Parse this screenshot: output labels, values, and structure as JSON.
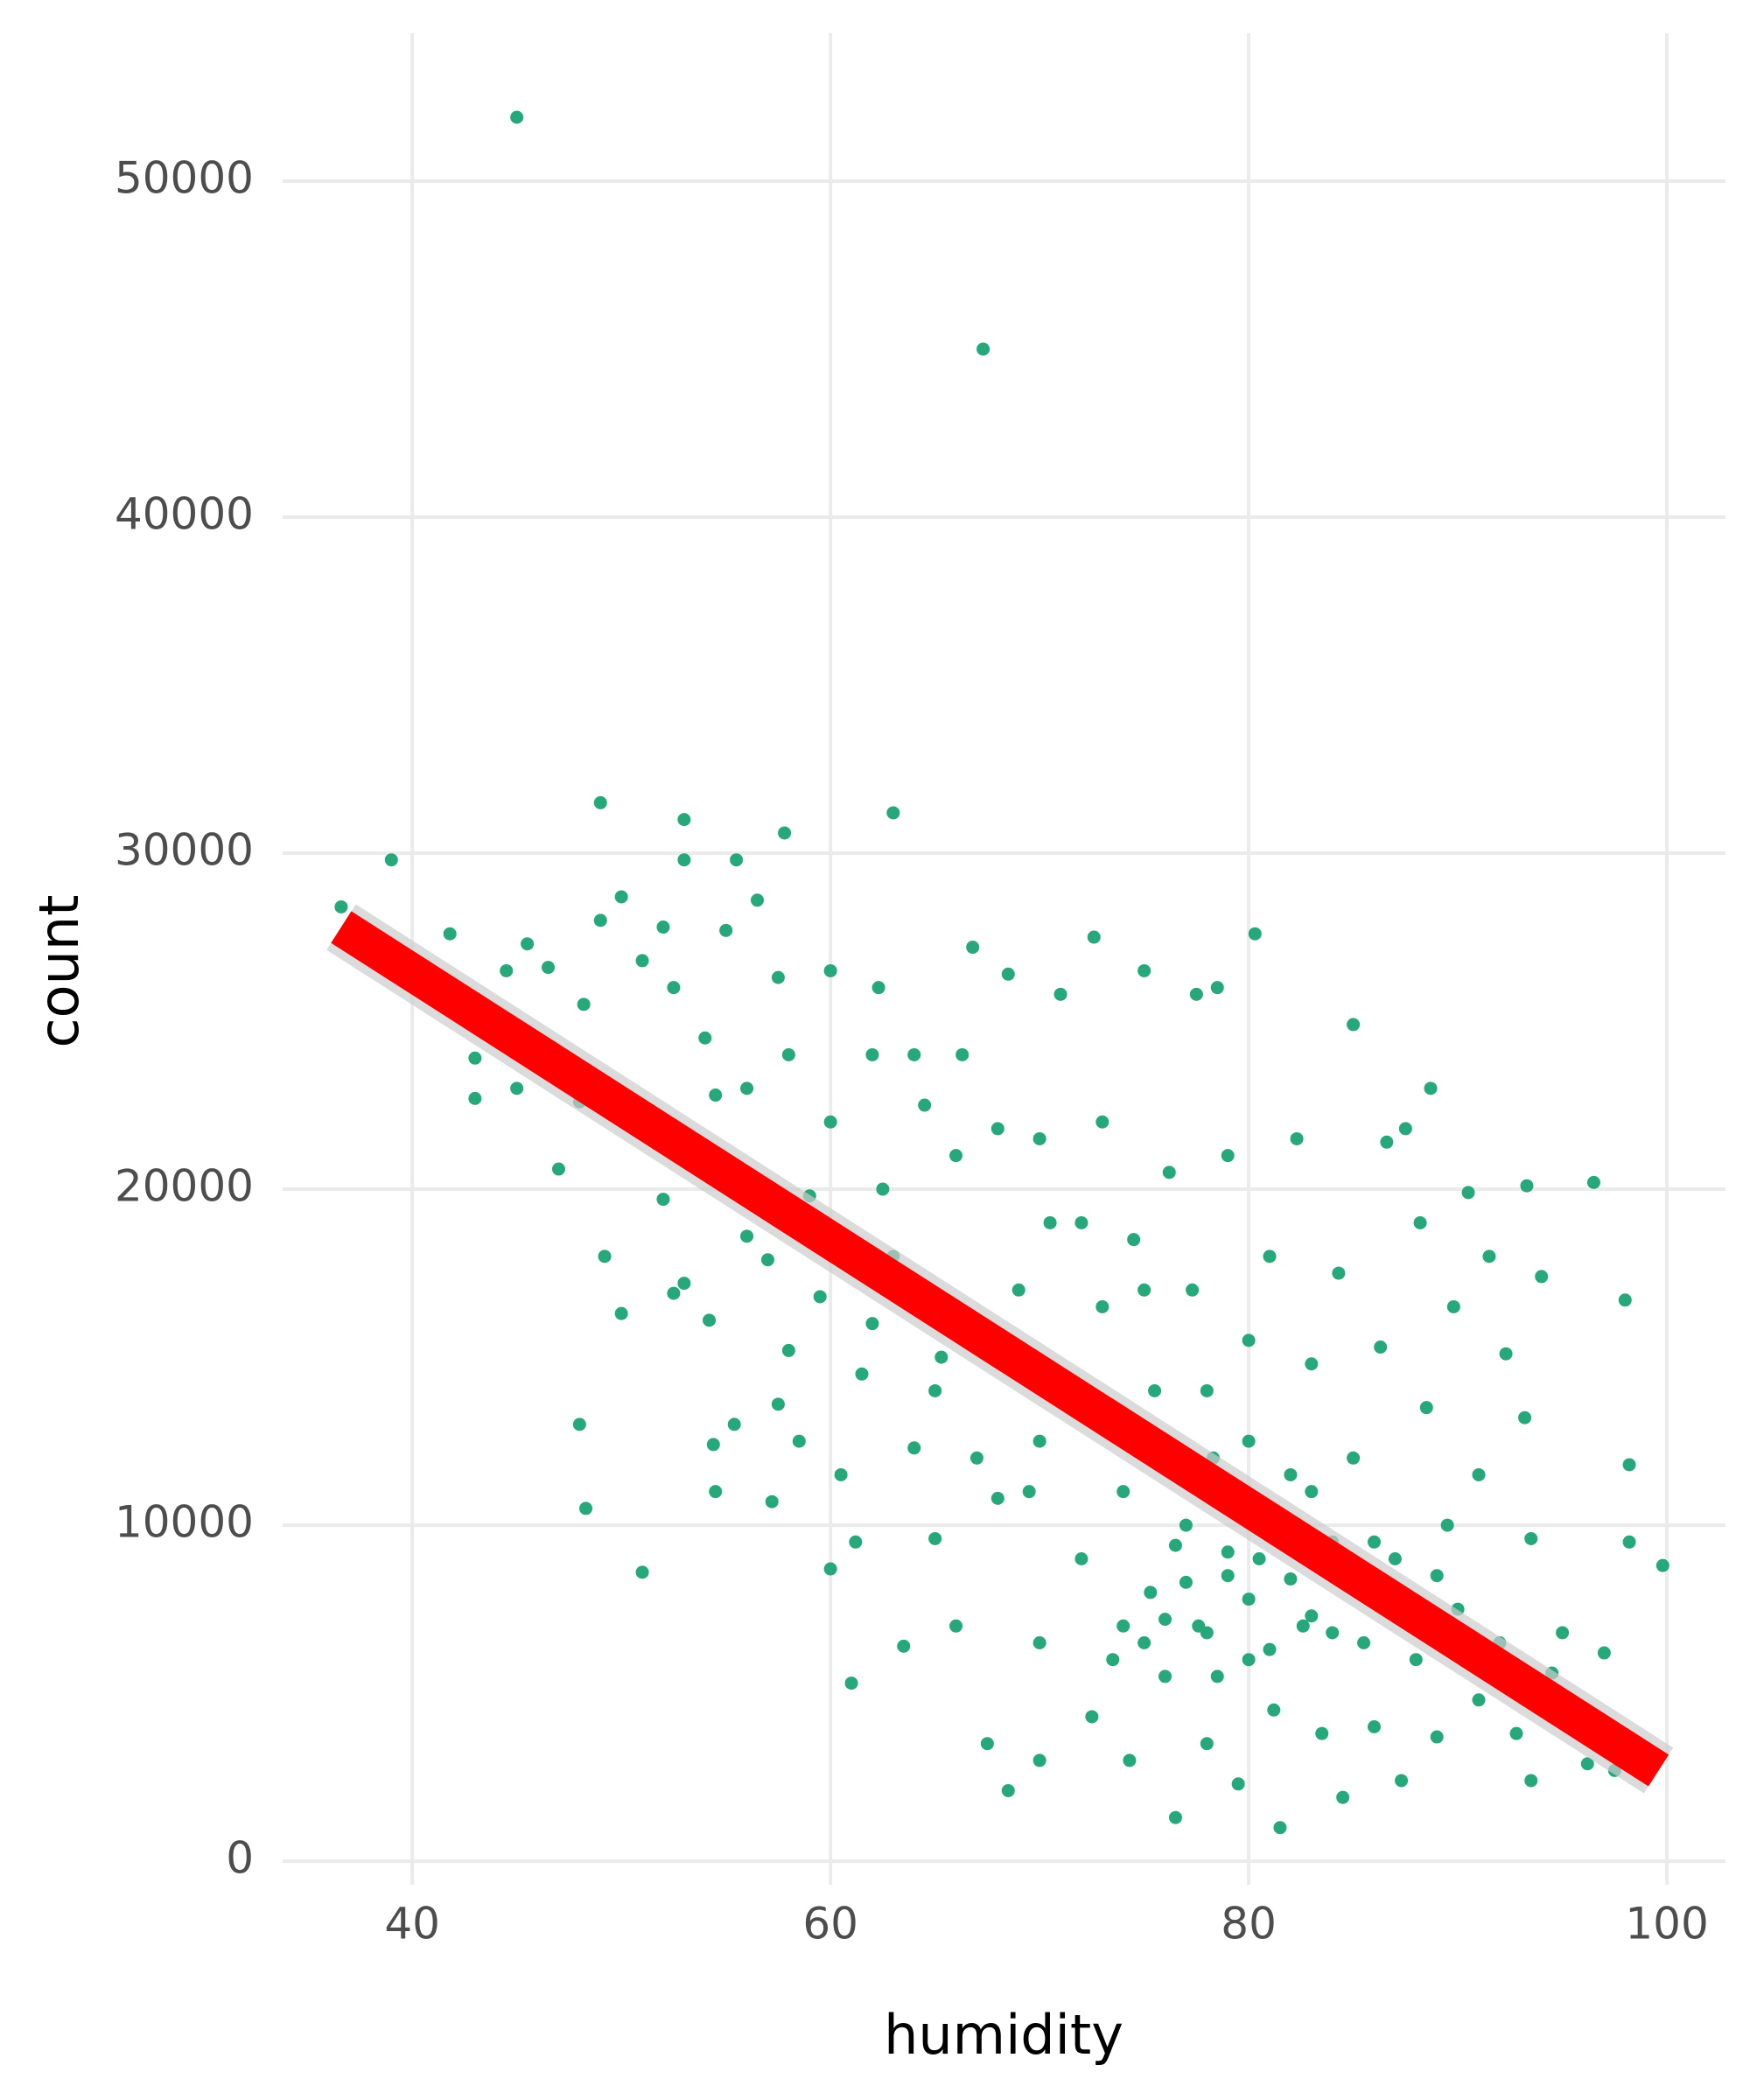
{
  "chart_data": {
    "type": "scatter",
    "x_label": "humidity",
    "y_label": "count",
    "color": "#27a87b",
    "xlim": [
      33.8,
      102.8
    ],
    "ylim": [
      -700,
      54400
    ],
    "xticks": [
      40,
      60,
      80,
      100
    ],
    "yticks": [
      0,
      10000,
      20000,
      30000,
      40000,
      50000
    ],
    "grid": true,
    "x": [
      45,
      67.3,
      39,
      36.6,
      49,
      53,
      63,
      57.8,
      48,
      48.3,
      51,
      49.2,
      50,
      47,
      43,
      43,
      41.8,
      44.5,
      45.5,
      45,
      46.5,
      48,
      48.2,
      49,
      50,
      51,
      52,
      53,
      52.5,
      54,
      55,
      55.5,
      56.5,
      57.5,
      56,
      54.5,
      53,
      52,
      52.5,
      53,
      54.2,
      54.4,
      54.5,
      55.4,
      56,
      57,
      57.2,
      57.5,
      58,
      58.5,
      59,
      59.5,
      60,
      60.5,
      61,
      61.2,
      61.5,
      62,
      62.3,
      62.5,
      63,
      63.5,
      64,
      64.5,
      65,
      65.3,
      66,
      66.3,
      66.8,
      67,
      67.5,
      68,
      68.5,
      68.5,
      69,
      69.5,
      70,
      70,
      70.5,
      71,
      71.5,
      72,
      72.5,
      72.6,
      73,
      73,
      73.5,
      74,
      74.3,
      74.5,
      75,
      75.3,
      75.5,
      76,
      76.2,
      76.5,
      77,
      77.3,
      77.6,
      77.5,
      78,
      78.3,
      78.5,
      79,
      79,
      79.5,
      80,
      80,
      80.3,
      80.5,
      81,
      81.2,
      81.5,
      82,
      82.3,
      82.6,
      83,
      83.5,
      84,
      84.3,
      84.5,
      85,
      85,
      85.5,
      86,
      86.3,
      86.6,
      87,
      87.3,
      87.5,
      88,
      88.2,
      88.5,
      88.7,
      89,
      89.5,
      89.8,
      90,
      90.5,
      91,
      91,
      91.5,
      92,
      92.3,
      92.8,
      93.2,
      93.3,
      93.5,
      93.5,
      94,
      94.5,
      95,
      96.2,
      96.5,
      97,
      97.5,
      98,
      98.2,
      98.2,
      99.8,
      74,
      75,
      76,
      77,
      78,
      79,
      80,
      81,
      82,
      83,
      76.5,
      78.5,
      80.5,
      84,
      85.5,
      75.5,
      73.5,
      70,
      68,
      65,
      62,
      60,
      58,
      60,
      64,
      66,
      70,
      72,
      75,
      78,
      80,
      83,
      86,
      89
    ],
    "y": [
      51900,
      45000,
      29800,
      28400,
      31500,
      31000,
      31200,
      30600,
      13000,
      10500,
      8600,
      18000,
      16300,
      20600,
      22700,
      23900,
      27600,
      26500,
      27300,
      23000,
      26600,
      22600,
      25500,
      28000,
      28700,
      26800,
      27800,
      29800,
      26000,
      24500,
      27700,
      29800,
      28600,
      26300,
      23000,
      22800,
      21400,
      19700,
      16900,
      17200,
      16100,
      12400,
      11000,
      13000,
      18600,
      17900,
      10700,
      13600,
      15200,
      12500,
      19800,
      16800,
      8700,
      11500,
      5300,
      9500,
      14500,
      24000,
      26000,
      20000,
      18000,
      6400,
      12300,
      22500,
      9600,
      15000,
      7000,
      24000,
      27200,
      12000,
      3500,
      21800,
      26400,
      2100,
      17000,
      11000,
      6500,
      3000,
      19000,
      25800,
      14000,
      9000,
      4300,
      27500,
      22000,
      16500,
      6000,
      11000,
      3000,
      18500,
      26500,
      8000,
      14000,
      5500,
      20500,
      1300,
      10000,
      17000,
      7000,
      25800,
      3500,
      12000,
      26000,
      8500,
      21000,
      2300,
      15500,
      6000,
      27600,
      9000,
      18000,
      4500,
      1000,
      11500,
      21500,
      7000,
      14800,
      3800,
      9500,
      17500,
      1900,
      12000,
      24900,
      6500,
      4000,
      15300,
      21400,
      9000,
      2400,
      21800,
      6000,
      19000,
      13500,
      23000,
      3700,
      10000,
      16500,
      7500,
      19900,
      4800,
      11500,
      18000,
      6500,
      15100,
      3800,
      13200,
      20100,
      9600,
      2400,
      17400,
      5600,
      6800,
      2900,
      20200,
      6200,
      2700,
      16700,
      11800,
      9500,
      8800,
      7000,
      6500,
      7200,
      8300,
      6800,
      9200,
      7800,
      6300,
      8400,
      7300,
      9400,
      5500,
      10300,
      6800,
      8000,
      12500,
      13000,
      12500,
      10800,
      14000,
      16000,
      22000,
      24000,
      26500,
      24000,
      21000,
      21500,
      19000,
      17000,
      14000,
      12500,
      11000,
      9500,
      8500
    ],
    "trend_line": {
      "color": "#ff0000",
      "x": [
        36.6,
        99.6
      ],
      "y": [
        27800,
        2700
      ]
    }
  }
}
